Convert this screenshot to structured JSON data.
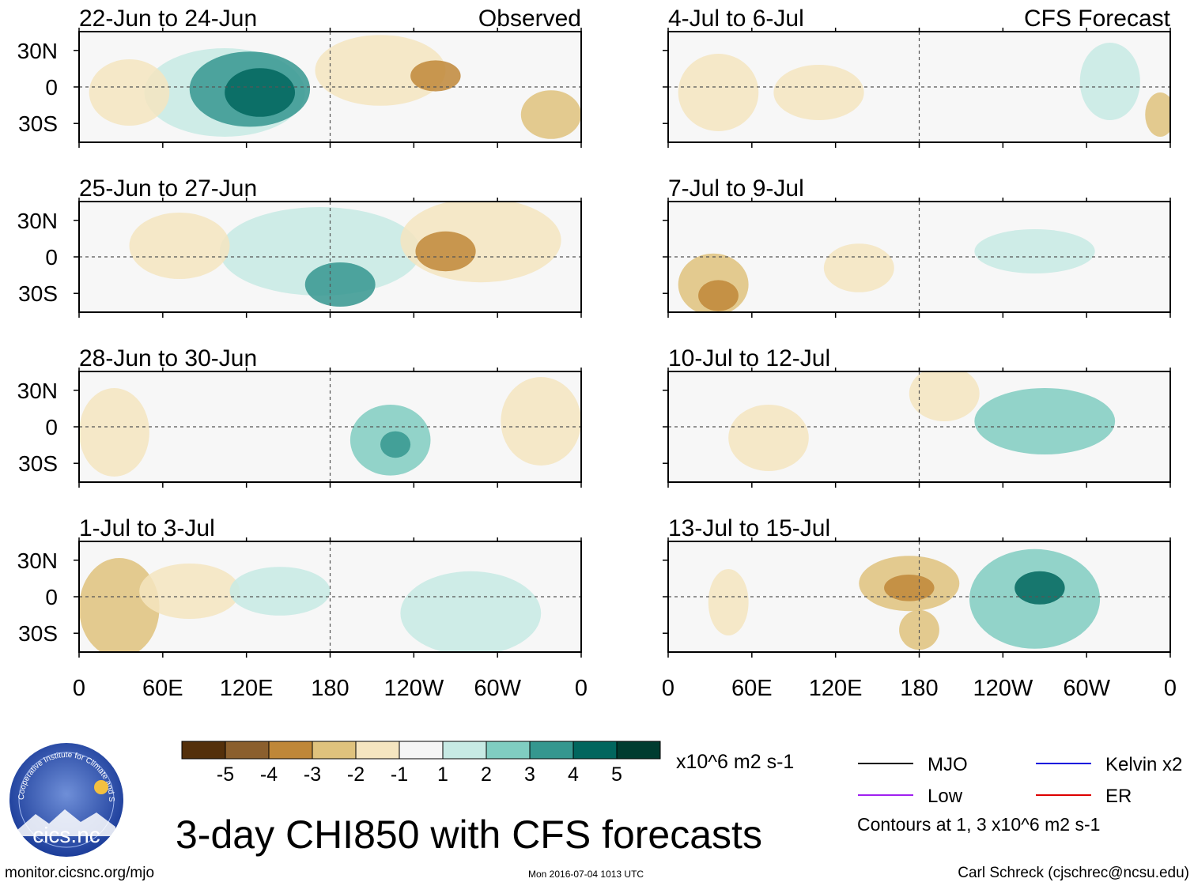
{
  "panels": {
    "left": [
      {
        "date": "22-Jun to 24-Jun",
        "label": "Observed"
      },
      {
        "date": "25-Jun to 27-Jun",
        "label": ""
      },
      {
        "date": "28-Jun to 30-Jun",
        "label": ""
      },
      {
        "date": "1-Jul to 3-Jul",
        "label": ""
      }
    ],
    "right": [
      {
        "date": "4-Jul to 6-Jul",
        "label": "CFS Forecast"
      },
      {
        "date": "7-Jul to 9-Jul",
        "label": ""
      },
      {
        "date": "10-Jul to 12-Jul",
        "label": ""
      },
      {
        "date": "13-Jul to 15-Jul",
        "label": ""
      }
    ]
  },
  "lat_labels": [
    "30N",
    "0",
    "30S"
  ],
  "lon_labels": [
    "0",
    "60E",
    "120E",
    "180",
    "120W",
    "60W",
    "0"
  ],
  "colorbar": {
    "ticks": [
      "-5",
      "-4",
      "-3",
      "-2",
      "-1",
      "1",
      "2",
      "3",
      "4",
      "5"
    ],
    "colors": [
      "#54300b",
      "#8b5f2d",
      "#bf8738",
      "#dfc27d",
      "#f5e5c0",
      "#f5f5f5",
      "#c7eae4",
      "#80cdc1",
      "#35978f",
      "#01665e",
      "#003c30"
    ],
    "units": "x10^6 m2 s-1"
  },
  "legend": {
    "items": [
      {
        "label": "MJO",
        "color": "#000000"
      },
      {
        "label": "Kelvin x2",
        "color": "#0000dd"
      },
      {
        "label": "Low",
        "color": "#a020f0"
      },
      {
        "label": "ER",
        "color": "#dd0000"
      }
    ],
    "note": "Contours at 1, 3 x10^6 m2 s-1"
  },
  "title": "3-day CHI850 with CFS forecasts",
  "logo": {
    "text": "cics.nc",
    "ring_text": "Cooperative Institute for Climate and Satellites"
  },
  "footer": {
    "url": "monitor.cicsnc.org/mjo",
    "timestamp": "Mon 2016-07-04 1013 UTC",
    "credit": "Carl Schreck (cjschrec@ncsu.edu)"
  },
  "colors": {
    "map_bg": "#f7f7f7",
    "coast": "#777777",
    "frame": "#000000"
  }
}
